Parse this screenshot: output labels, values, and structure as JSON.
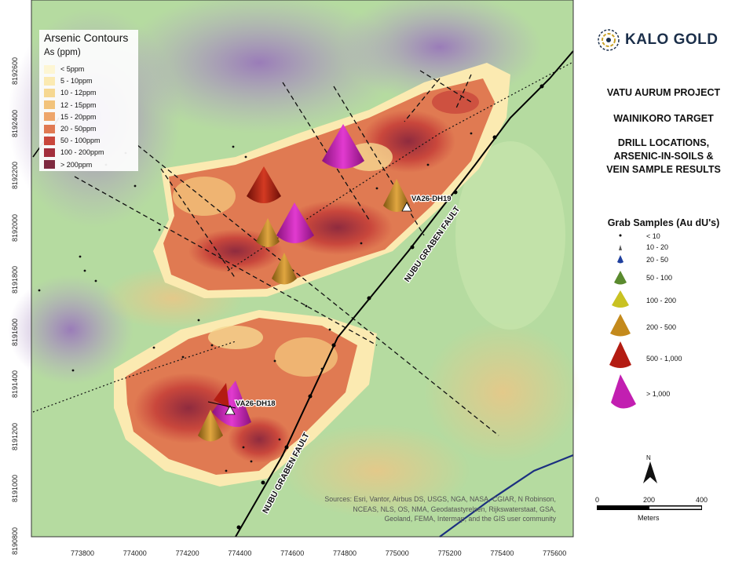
{
  "logo": {
    "text": "KALO GOLD"
  },
  "titles": [
    "VATU AURUM PROJECT",
    "WAINIKORO TARGET",
    "DRILL LOCATIONS,",
    "ARSENIC-IN-SOILS &",
    "VEIN SAMPLE RESULTS"
  ],
  "arsenic_legend": {
    "title": "Arsenic Contours",
    "subtitle": "As (ppm)",
    "classes": [
      {
        "label": "< 5ppm",
        "color": "#fdf6d3"
      },
      {
        "label": "5 - 10ppm",
        "color": "#fbeab1"
      },
      {
        "label": "10 - 12ppm",
        "color": "#f6d891"
      },
      {
        "label": "12 - 15ppm",
        "color": "#f2c37a"
      },
      {
        "label": "15 - 20ppm",
        "color": "#eea66a"
      },
      {
        "label": "20 - 50ppm",
        "color": "#e07a52"
      },
      {
        "label": "50 - 100ppm",
        "color": "#c9473c"
      },
      {
        "label": "100 - 200ppm",
        "color": "#a3303c"
      },
      {
        "label": "> 200ppm",
        "color": "#7e2a3f"
      }
    ]
  },
  "grab_samples": {
    "title": "Grab Samples (Au dU's)",
    "classes": [
      {
        "label": "< 10",
        "color": "#000000",
        "icon": "dot-icon"
      },
      {
        "label": "10 - 20",
        "color": "#555555",
        "icon": "cone-icon"
      },
      {
        "label": "20 - 50",
        "color": "#1f3f9e",
        "icon": "cone-icon"
      },
      {
        "label": "50 - 100",
        "color": "#5a8a2e",
        "icon": "cone-icon"
      },
      {
        "label": "100 - 200",
        "color": "#c9c222",
        "icon": "cone-icon"
      },
      {
        "label": "200 - 500",
        "color": "#c48a1c",
        "icon": "cone-icon"
      },
      {
        "label": "500 - 1,000",
        "color": "#b31c12",
        "icon": "cone-icon"
      },
      {
        "label": "> 1,000",
        "color": "#c21fb1",
        "icon": "cone-icon"
      }
    ]
  },
  "drill_holes": [
    "VA26-DH19",
    "VA26-DH18"
  ],
  "faults": [
    "NUBU GRABEN FAULT",
    "NUBU GRABEN FAULT"
  ],
  "north_label": "N",
  "scale": {
    "ticks": [
      "0",
      "200",
      "400"
    ],
    "units": "Meters"
  },
  "axes": {
    "x_ticks": [
      "773800",
      "774000",
      "774200",
      "774400",
      "774600",
      "774800",
      "775000",
      "775200",
      "775400",
      "775600"
    ],
    "y_ticks": [
      "8192600",
      "8192400",
      "8192200",
      "8192000",
      "8191800",
      "8191600",
      "8191400",
      "8191200",
      "8191000",
      "8190800"
    ]
  },
  "sources": "Sources: Esri, Vantor, Airbus DS, USGS, NGA, NASA, CGIAR, N Robinson, NCEAS, NLS, OS, NMA, Geodatastyrelsen, Rijkswaterstaat, GSA, Geoland, FEMA, Intermap, and the GIS user community",
  "map_colors": {
    "terrain_green": "#b5dba0",
    "terrain_purple": "#b89ac9",
    "fault_line": "#000000",
    "road_blue": "#1b2f80"
  }
}
